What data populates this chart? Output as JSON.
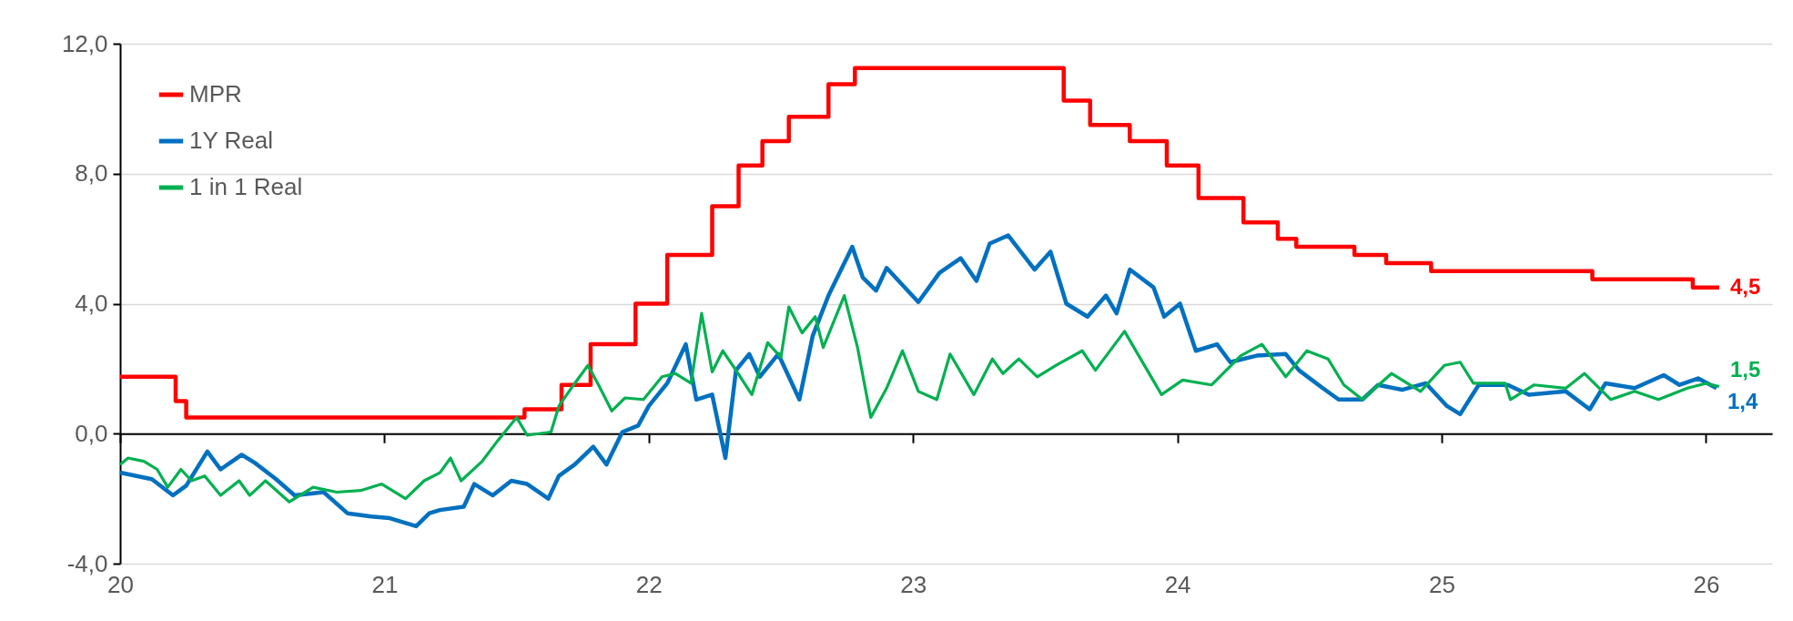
{
  "chart_data": {
    "type": "line",
    "xlim": [
      20,
      26.25
    ],
    "xticks": [
      20,
      21,
      22,
      23,
      24,
      25,
      26
    ],
    "ylim": [
      -4,
      12
    ],
    "yticks": [
      {
        "value": -4,
        "label": "-4,0"
      },
      {
        "value": 0,
        "label": "0,0"
      },
      {
        "value": 4,
        "label": "4,0"
      },
      {
        "value": 8,
        "label": "8,0"
      },
      {
        "value": 12,
        "label": "12,0"
      }
    ],
    "grid": "y",
    "legend": "top left",
    "line_style": "solid",
    "marker": "none",
    "series": [
      {
        "name": "MPR",
        "color": "#ff0000",
        "type": "step",
        "x": [
          20.0,
          20.21,
          20.25,
          21.53,
          21.67,
          21.78,
          21.95,
          22.07,
          22.24,
          22.34,
          22.43,
          22.53,
          22.68,
          22.78,
          23.57,
          23.67,
          23.82,
          23.96,
          24.08,
          24.25,
          24.38,
          24.45,
          24.67,
          24.79,
          24.96,
          25.57,
          25.95,
          26.05
        ],
        "values": [
          1.75,
          1.0,
          0.5,
          0.75,
          1.5,
          2.75,
          4.0,
          5.5,
          7.0,
          8.25,
          9.0,
          9.75,
          10.75,
          11.25,
          10.25,
          9.5,
          9.0,
          8.25,
          7.25,
          6.5,
          6.0,
          5.75,
          5.5,
          5.25,
          5.0,
          4.75,
          4.5,
          4.5
        ]
      },
      {
        "name": "1Y Real",
        "color": "#0070c0",
        "x": [
          20.0,
          20.12,
          20.2,
          20.25,
          20.33,
          20.38,
          20.46,
          20.51,
          20.59,
          20.66,
          20.77,
          20.86,
          20.95,
          21.02,
          21.12,
          21.17,
          21.21,
          21.3,
          21.34,
          21.41,
          21.48,
          21.54,
          21.62,
          21.66,
          21.72,
          21.79,
          21.84,
          21.9,
          21.96,
          22.0,
          22.07,
          22.14,
          22.18,
          22.24,
          22.29,
          22.33,
          22.38,
          22.42,
          22.49,
          22.57,
          22.62,
          22.68,
          22.77,
          22.81,
          22.86,
          22.9,
          23.02,
          23.1,
          23.18,
          23.24,
          23.29,
          23.36,
          23.46,
          23.52,
          23.58,
          23.66,
          23.73,
          23.77,
          23.82,
          23.91,
          23.95,
          24.01,
          24.07,
          24.15,
          24.2,
          24.3,
          24.41,
          24.46,
          24.55,
          24.61,
          24.7,
          24.76,
          24.85,
          24.94,
          25.02,
          25.07,
          25.14,
          25.25,
          25.33,
          25.47,
          25.56,
          25.62,
          25.73,
          25.84,
          25.9,
          25.97,
          26.04
        ],
        "values": [
          -1.2,
          -1.4,
          -1.9,
          -1.6,
          -0.55,
          -1.1,
          -0.65,
          -0.9,
          -1.4,
          -1.9,
          -1.8,
          -2.45,
          -2.55,
          -2.6,
          -2.85,
          -2.45,
          -2.35,
          -2.25,
          -1.55,
          -1.9,
          -1.45,
          -1.55,
          -2.0,
          -1.3,
          -0.95,
          -0.4,
          -0.95,
          0.05,
          0.25,
          0.85,
          1.55,
          2.75,
          1.05,
          1.2,
          -0.75,
          1.95,
          2.45,
          1.75,
          2.45,
          1.05,
          3.0,
          4.25,
          5.75,
          4.8,
          4.4,
          5.1,
          4.05,
          4.95,
          5.4,
          4.7,
          5.85,
          6.1,
          5.05,
          5.6,
          4.0,
          3.6,
          4.25,
          3.7,
          5.05,
          4.5,
          3.6,
          4.0,
          2.55,
          2.75,
          2.2,
          2.4,
          2.45,
          1.95,
          1.4,
          1.05,
          1.05,
          1.5,
          1.35,
          1.55,
          0.85,
          0.6,
          1.5,
          1.5,
          1.2,
          1.3,
          0.75,
          1.55,
          1.4,
          1.8,
          1.5,
          1.7,
          1.4
        ]
      },
      {
        "name": "1 in 1 Real",
        "color": "#00b050",
        "x": [
          20.0,
          20.03,
          20.09,
          20.14,
          20.18,
          20.23,
          20.27,
          20.32,
          20.38,
          20.45,
          20.49,
          20.55,
          20.64,
          20.73,
          20.82,
          20.91,
          20.99,
          21.08,
          21.15,
          21.21,
          21.25,
          21.29,
          21.37,
          21.43,
          21.5,
          21.54,
          21.63,
          21.66,
          21.72,
          21.77,
          21.81,
          21.86,
          21.91,
          21.98,
          22.05,
          22.1,
          22.16,
          22.2,
          22.24,
          22.28,
          22.33,
          22.39,
          22.45,
          22.5,
          22.53,
          22.58,
          22.63,
          22.66,
          22.74,
          22.79,
          22.84,
          22.9,
          22.96,
          23.02,
          23.09,
          23.14,
          23.23,
          23.3,
          23.34,
          23.4,
          23.47,
          23.54,
          23.64,
          23.69,
          23.8,
          23.94,
          24.02,
          24.13,
          24.24,
          24.32,
          24.41,
          24.49,
          24.57,
          24.63,
          24.7,
          24.81,
          24.92,
          25.01,
          25.07,
          25.12,
          25.24,
          25.26,
          25.35,
          25.47,
          25.54,
          25.64,
          25.73,
          25.82,
          25.93,
          26.0,
          26.05
        ],
        "values": [
          -0.95,
          -0.75,
          -0.85,
          -1.1,
          -1.65,
          -1.1,
          -1.45,
          -1.3,
          -1.9,
          -1.45,
          -1.9,
          -1.45,
          -2.1,
          -1.65,
          -1.8,
          -1.75,
          -1.55,
          -2.0,
          -1.45,
          -1.2,
          -0.75,
          -1.45,
          -0.85,
          -0.2,
          0.5,
          -0.05,
          0.05,
          0.85,
          1.55,
          2.1,
          1.5,
          0.7,
          1.1,
          1.05,
          1.75,
          1.85,
          1.55,
          3.7,
          1.9,
          2.55,
          1.95,
          1.2,
          2.8,
          2.35,
          3.9,
          3.1,
          3.6,
          2.65,
          4.25,
          2.65,
          0.5,
          1.4,
          2.55,
          1.3,
          1.05,
          2.45,
          1.2,
          2.3,
          1.85,
          2.3,
          1.75,
          2.1,
          2.55,
          1.95,
          3.15,
          1.2,
          1.65,
          1.5,
          2.4,
          2.75,
          1.75,
          2.55,
          2.3,
          1.5,
          1.05,
          1.85,
          1.3,
          2.1,
          2.2,
          1.55,
          1.55,
          1.05,
          1.5,
          1.4,
          1.85,
          1.05,
          1.3,
          1.05,
          1.4,
          1.55,
          1.45
        ]
      }
    ],
    "annotations": [
      "4,5",
      "1,4",
      "1,5"
    ]
  }
}
